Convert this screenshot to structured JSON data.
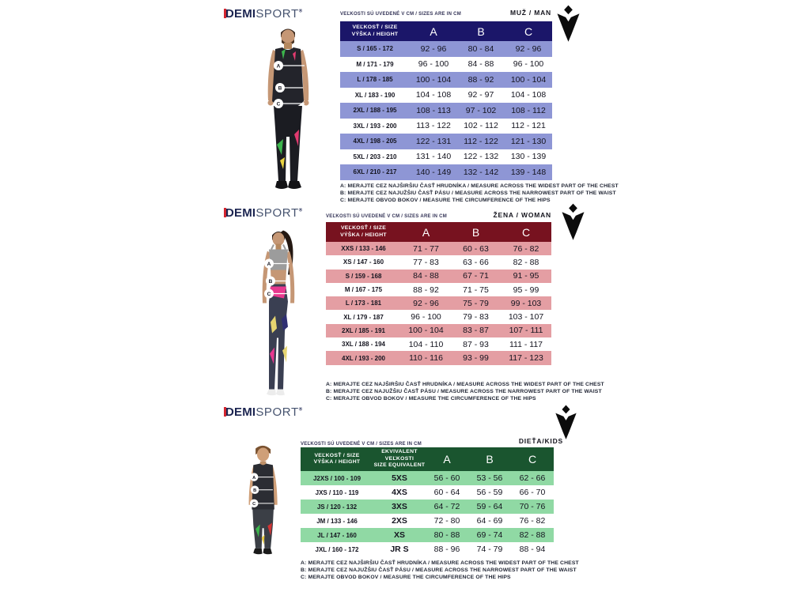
{
  "brand": {
    "demi": "DEMI",
    "sport": "SPORT",
    "reg": "®"
  },
  "notes": {
    "a": "A: MERAJTE CEZ NAJŠIRŠIU ČASŤ HRUDNÍKA / MEASURE ACROSS THE WIDEST PART OF THE CHEST",
    "b": "B: MERAJTE CEZ NAJUŽŠIU ČASŤ PÁSU / MEASURE ACROSS THE NARROWEST PART OF THE WAIST",
    "c": "C: MERAJTE OBVOD BOKOV / MEASURE THE CIRCUMFERENCE OF THE HIPS"
  },
  "sections": [
    {
      "id": "men",
      "audience_label": "MUŽ / MAN",
      "units_note": "VEĽKOSTI SÚ UVEDENÉ V CM / SIZES ARE IN CM",
      "header": {
        "size": "VEĽKOSŤ / SIZE",
        "height": "VÝŠKA / HEIGHT",
        "a": "A",
        "b": "B",
        "c": "C"
      },
      "colors": {
        "header_bg": "#1b1669",
        "row_bg": "#8e96d5"
      },
      "rows": [
        {
          "size": "S / 165 - 172",
          "a": "92 - 96",
          "b": "80 - 84",
          "c": "92 - 96"
        },
        {
          "size": "M / 171 - 179",
          "a": "96 - 100",
          "b": "84 - 88",
          "c": "96 - 100"
        },
        {
          "size": "L / 178 - 185",
          "a": "100 - 104",
          "b": "88 - 92",
          "c": "100 - 104"
        },
        {
          "size": "XL / 183 - 190",
          "a": "104 - 108",
          "b": "92 - 97",
          "c": "104 - 108"
        },
        {
          "size": "2XL / 188 - 195",
          "a": "108 - 113",
          "b": "97 - 102",
          "c": "108 - 112"
        },
        {
          "size": "3XL / 193 - 200",
          "a": "113 - 122",
          "b": "102 - 112",
          "c": "112 - 121"
        },
        {
          "size": "4XL / 198 - 205",
          "a": "122 - 131",
          "b": "112 - 122",
          "c": "121 - 130"
        },
        {
          "size": "5XL / 203 - 210",
          "a": "131 - 140",
          "b": "122 - 132",
          "c": "130 - 139"
        },
        {
          "size": "6XL / 210 - 217",
          "a": "140 - 149",
          "b": "132 - 142",
          "c": "139 - 148"
        }
      ]
    },
    {
      "id": "women",
      "audience_label": "ŽENA / WOMAN",
      "units_note": "VEĽKOSTI SÚ UVEDENÉ V CM / SIZES ARE IN CM",
      "header": {
        "size": "VEĽKOSŤ / SIZE",
        "height": "VÝŠKA / HEIGHT",
        "a": "A",
        "b": "B",
        "c": "C"
      },
      "colors": {
        "header_bg": "#77121f",
        "row_bg": "#e49ea3"
      },
      "rows": [
        {
          "size": "XXS / 133 - 146",
          "a": "71 - 77",
          "b": "60 - 63",
          "c": "76 - 82"
        },
        {
          "size": "XS / 147 - 160",
          "a": "77 - 83",
          "b": "63 - 66",
          "c": "82 - 88"
        },
        {
          "size": "S / 159 - 168",
          "a": "84 - 88",
          "b": "67 - 71",
          "c": "91 - 95"
        },
        {
          "size": "M / 167 - 175",
          "a": "88 - 92",
          "b": "71 - 75",
          "c": "95 - 99"
        },
        {
          "size": "L / 173 - 181",
          "a": "92 - 96",
          "b": "75 - 79",
          "c": "99 - 103"
        },
        {
          "size": "XL / 179 - 187",
          "a": "96 - 100",
          "b": "79 - 83",
          "c": "103 - 107"
        },
        {
          "size": "2XL / 185 - 191",
          "a": "100 - 104",
          "b": "83 - 87",
          "c": "107 - 111"
        },
        {
          "size": "3XL / 188 - 194",
          "a": "104 - 110",
          "b": "87 - 93",
          "c": "111 - 117"
        },
        {
          "size": "4XL / 193 - 200",
          "a": "110 - 116",
          "b": "93 - 99",
          "c": "117 - 123"
        }
      ]
    },
    {
      "id": "kids",
      "audience_label": "DIEŤA/KIDS",
      "units_note": "VEĽKOSTI SÚ UVEDENÉ V CM / SIZES ARE IN CM",
      "header": {
        "size": "VEĽKOSŤ / SIZE",
        "height": "VÝŠKA / HEIGHT",
        "equiv1": "EKVIVALENT VEĽKOSTI",
        "equiv2": "SIZE EQUIVALENT",
        "a": "A",
        "b": "B",
        "c": "C"
      },
      "colors": {
        "header_bg": "#1a552f",
        "row_bg": "#90d9a4"
      },
      "rows": [
        {
          "size": "J2XS / 100 - 109",
          "equiv": "5XS",
          "a": "56 - 60",
          "b": "53 - 56",
          "c": "62 - 66"
        },
        {
          "size": "JXS / 110 - 119",
          "equiv": "4XS",
          "a": "60 - 64",
          "b": "56 - 59",
          "c": "66 - 70"
        },
        {
          "size": "JS / 120 - 132",
          "equiv": "3XS",
          "a": "64 - 72",
          "b": "59 - 64",
          "c": "70 - 76"
        },
        {
          "size": "JM / 133 - 146",
          "equiv": "2XS",
          "a": "72 - 80",
          "b": "64 - 69",
          "c": "76 - 82"
        },
        {
          "size": "JL / 147 - 160",
          "equiv": "XS",
          "a": "80 - 88",
          "b": "69 - 74",
          "c": "82 - 88"
        },
        {
          "size": "JXL / 160 - 172",
          "equiv": "JR S",
          "a": "88 - 96",
          "b": "74 - 79",
          "c": "88 - 94"
        }
      ]
    }
  ]
}
